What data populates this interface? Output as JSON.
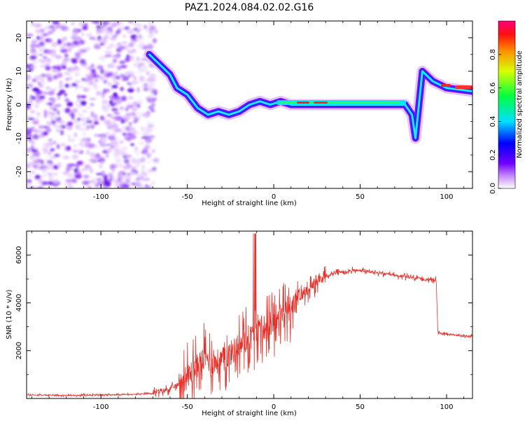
{
  "title": "PAZ1.2024.084.02.02.G16",
  "chart_data": [
    {
      "type": "heatmap",
      "xlabel": "Height of straight line (km)",
      "ylabel": "Frequency (Hz)",
      "xlim": [
        -143,
        115
      ],
      "ylim": [
        -25,
        25
      ],
      "xticks": [
        -100,
        -50,
        0,
        50,
        100
      ],
      "yticks": [
        -20,
        -10,
        0,
        10,
        20
      ],
      "colorbar": {
        "label": "Normalized spectral amplitude",
        "range": [
          0,
          1
        ],
        "ticks": [
          0.0,
          0.2,
          0.4,
          0.6,
          0.8
        ]
      },
      "ridge": [
        {
          "x": -72,
          "y": 15
        },
        {
          "x": -66,
          "y": 12
        },
        {
          "x": -60,
          "y": 9
        },
        {
          "x": -56,
          "y": 5
        },
        {
          "x": -50,
          "y": 3
        },
        {
          "x": -44,
          "y": -1
        },
        {
          "x": -38,
          "y": -3
        },
        {
          "x": -32,
          "y": -2
        },
        {
          "x": -26,
          "y": -3
        },
        {
          "x": -20,
          "y": -2
        },
        {
          "x": -14,
          "y": 0
        },
        {
          "x": -8,
          "y": 1
        },
        {
          "x": -2,
          "y": 0
        },
        {
          "x": 4,
          "y": 1
        },
        {
          "x": 10,
          "y": 0
        },
        {
          "x": 20,
          "y": 0
        },
        {
          "x": 40,
          "y": 0
        },
        {
          "x": 60,
          "y": 0
        },
        {
          "x": 76,
          "y": 0
        },
        {
          "x": 80,
          "y": -3
        },
        {
          "x": 82,
          "y": -10
        },
        {
          "x": 86,
          "y": 10
        },
        {
          "x": 92,
          "y": 7
        },
        {
          "x": 100,
          "y": 5
        },
        {
          "x": 115,
          "y": 4
        }
      ]
    },
    {
      "type": "line",
      "xlabel": "Height of straight line (km)",
      "ylabel": "SNR (10 * v/v)",
      "xlim": [
        -143,
        115
      ],
      "ylim": [
        0,
        7000
      ],
      "xticks": [
        -100,
        -50,
        0,
        50,
        100
      ],
      "yticks": [
        2000,
        4000,
        6000
      ],
      "series": [
        {
          "color": "#e8302a",
          "x": [
            -143,
            -120,
            -100,
            -80,
            -70,
            -60,
            -55,
            -50,
            -45,
            -40,
            -35,
            -30,
            -25,
            -20,
            -15,
            -10,
            -5,
            0,
            5,
            10,
            15,
            20,
            25,
            30,
            35,
            40,
            45,
            50,
            55,
            60,
            65,
            70,
            75,
            80,
            85,
            90,
            94,
            95,
            100,
            105,
            110,
            115
          ],
          "y": [
            150,
            130,
            150,
            170,
            220,
            400,
            600,
            900,
            1300,
            1700,
            1500,
            1600,
            1900,
            2200,
            2500,
            2700,
            3000,
            3200,
            3500,
            3800,
            4200,
            4600,
            4900,
            5100,
            5250,
            5300,
            5350,
            5350,
            5300,
            5250,
            5200,
            5150,
            5100,
            5050,
            5000,
            4980,
            4950,
            2750,
            2700,
            2650,
            2620,
            2600
          ]
        }
      ]
    }
  ]
}
